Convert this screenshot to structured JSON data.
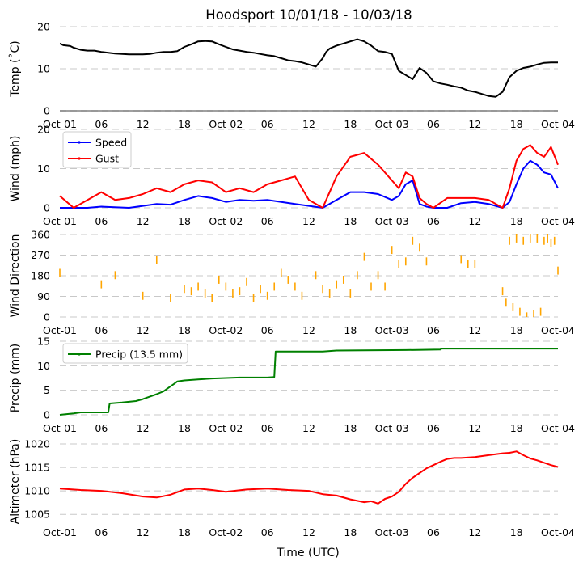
{
  "title": "Hoodsport 10/01/18 - 10/03/18",
  "xlabel": "Time (UTC)",
  "x_ticks": [
    "Oct-01",
    "06",
    "12",
    "18",
    "Oct-02",
    "06",
    "12",
    "18",
    "Oct-03",
    "06",
    "12",
    "18",
    "Oct-04"
  ],
  "colors": {
    "temp": "#000000",
    "speed": "#0000ff",
    "gust": "#ff0000",
    "dir": "#ffa500",
    "precip": "#008000",
    "alt": "#ff0000"
  },
  "chart_data": [
    {
      "type": "line",
      "id": "temp",
      "ylabel": "Temp ($^\\circ$C)",
      "ylabel_display": "Temp (˚C)",
      "ylim": [
        0,
        20
      ],
      "y_ticks": [
        "0",
        "10",
        "20"
      ],
      "x_unit": "hours since Oct-01 00:00 UTC",
      "series": [
        {
          "name": "Temp",
          "x": [
            0,
            0.5,
            1,
            1.5,
            2,
            3,
            4,
            5,
            6,
            7,
            8,
            9,
            10,
            11,
            12,
            13,
            14,
            15,
            16,
            17,
            18,
            19,
            20,
            21,
            22,
            23,
            24,
            25,
            26,
            27,
            28,
            29,
            30,
            31,
            32,
            33,
            34,
            35,
            36,
            37,
            38,
            38.5,
            39,
            40,
            41,
            42,
            43,
            44,
            45,
            46,
            47,
            48,
            49,
            50,
            51,
            52,
            53,
            54,
            55,
            56,
            57,
            58,
            59,
            60,
            61,
            62,
            63,
            64,
            65,
            66,
            67,
            68,
            69,
            70,
            71,
            72
          ],
          "y": [
            16,
            15.6,
            15.5,
            15.4,
            15,
            14.5,
            14.3,
            14.3,
            14,
            13.8,
            13.6,
            13.5,
            13.4,
            13.4,
            13.4,
            13.5,
            13.8,
            14,
            14,
            14.2,
            15.2,
            15.8,
            16.5,
            16.6,
            16.5,
            15.8,
            15.2,
            14.6,
            14.3,
            14,
            13.8,
            13.5,
            13.2,
            13,
            12.5,
            12,
            11.8,
            11.5,
            11,
            10.5,
            12.5,
            14,
            14.8,
            15.5,
            16,
            16.5,
            17,
            16.5,
            15.5,
            14.2,
            14,
            13.5,
            9.5,
            8.5,
            7.5,
            10.2,
            9,
            7,
            6.5,
            6.2,
            5.8,
            5.5,
            4.8,
            4.5,
            4,
            3.5,
            3.3,
            4.5,
            8,
            9.5,
            10.2,
            10.5,
            11,
            11.4,
            11.5,
            11.5
          ]
        }
      ]
    },
    {
      "type": "line",
      "id": "wind",
      "ylabel": "Wind (mph)",
      "ylim": [
        0,
        20
      ],
      "y_ticks": [
        "0",
        "10",
        "20"
      ],
      "legend": [
        "Speed",
        "Gust"
      ],
      "series": [
        {
          "name": "Speed",
          "x": [
            0,
            4,
            6,
            10,
            12,
            14,
            16,
            18,
            20,
            22,
            24,
            26,
            28,
            30,
            32,
            34,
            36,
            38,
            40,
            42,
            44,
            46,
            48,
            49,
            50,
            51,
            52,
            53,
            54,
            56,
            58,
            60,
            62,
            63,
            64,
            65,
            66,
            67,
            68,
            69,
            70,
            71,
            72
          ],
          "y": [
            0,
            0,
            0.3,
            0,
            0.5,
            1,
            0.8,
            2,
            3,
            2.5,
            1.5,
            2,
            1.8,
            2,
            1.5,
            1,
            0.5,
            0,
            2,
            4,
            4,
            3.5,
            2,
            3,
            6,
            7,
            1,
            0.3,
            0,
            0,
            1.2,
            1.5,
            1,
            0.5,
            0,
            1.5,
            6,
            10,
            12,
            11,
            9,
            8.5,
            5
          ]
        },
        {
          "name": "Gust",
          "x": [
            0,
            2,
            6,
            8,
            10,
            12,
            14,
            16,
            18,
            20,
            22,
            24,
            26,
            28,
            30,
            32,
            34,
            36,
            38,
            40,
            42,
            44,
            46,
            48,
            49,
            50,
            51,
            52,
            53,
            54,
            56,
            58,
            60,
            62,
            64,
            65,
            66,
            67,
            68,
            69,
            70,
            71,
            72
          ],
          "y": [
            3,
            0,
            4,
            2,
            2.5,
            3.5,
            5,
            4,
            6,
            7,
            6.5,
            4,
            5,
            4,
            6,
            7,
            8,
            2,
            0,
            8,
            13,
            14,
            11,
            7,
            5,
            9,
            8,
            2.5,
            1,
            0,
            2.5,
            2.5,
            2.5,
            2,
            0,
            5,
            12,
            15,
            16,
            14,
            13,
            15.5,
            11
          ]
        }
      ]
    },
    {
      "type": "scatter",
      "id": "direction",
      "ylabel": "Wind Direction",
      "ylim": [
        0,
        360
      ],
      "y_ticks": [
        "0",
        "90",
        "180",
        "270",
        "360"
      ],
      "series": [
        {
          "name": "Direction",
          "x": [
            0,
            6,
            8,
            12,
            14,
            16,
            18,
            19,
            20,
            21,
            22,
            23,
            24,
            25,
            26,
            27,
            28,
            29,
            30,
            31,
            32,
            33,
            34,
            35,
            37,
            38,
            39,
            40,
            41,
            42,
            43,
            44,
            45,
            46,
            47,
            48,
            49,
            50,
            51,
            52,
            53,
            58,
            59,
            60,
            64,
            64.5,
            65,
            65.5,
            66,
            66.5,
            67,
            67.5,
            68,
            68.5,
            69,
            69.5,
            70,
            70.5,
            71,
            71.5,
            72
          ],
          "y": [
            210,
            160,
            200,
            110,
            265,
            100,
            140,
            130,
            150,
            120,
            100,
            180,
            150,
            120,
            130,
            170,
            100,
            140,
            110,
            150,
            210,
            180,
            150,
            110,
            200,
            140,
            120,
            160,
            180,
            120,
            200,
            280,
            150,
            200,
            150,
            310,
            250,
            260,
            350,
            320,
            260,
            270,
            250,
            250,
            130,
            80,
            350,
            60,
            360,
            40,
            350,
            20,
            360,
            30,
            360,
            40,
            350,
            360,
            340,
            350,
            220
          ]
        }
      ]
    },
    {
      "type": "line",
      "id": "precip",
      "ylabel": "Precip (mm)",
      "ylim": [
        0,
        15
      ],
      "y_ticks": [
        "0",
        "5",
        "10",
        "15"
      ],
      "legend": [
        "Precip (13.5 mm)"
      ],
      "series": [
        {
          "name": "Precip (13.5 mm)",
          "x": [
            0,
            2,
            3,
            7,
            7.2,
            9,
            11,
            12,
            13,
            14,
            15,
            16,
            16.5,
            17,
            18,
            20,
            22,
            24,
            26,
            30,
            31,
            31.2,
            38,
            40,
            50,
            55,
            55.2,
            72
          ],
          "y": [
            0,
            0.3,
            0.5,
            0.5,
            2.3,
            2.5,
            2.8,
            3.2,
            3.7,
            4.2,
            4.8,
            5.8,
            6.3,
            6.8,
            7,
            7.2,
            7.4,
            7.5,
            7.6,
            7.6,
            7.7,
            12.9,
            12.9,
            13.1,
            13.2,
            13.3,
            13.5,
            13.5
          ]
        }
      ]
    },
    {
      "type": "line",
      "id": "altimeter",
      "ylabel": "Altimeter (hPa)",
      "ylim": [
        1004,
        1020
      ],
      "y_ticks": [
        "1005",
        "1010",
        "1015",
        "1020"
      ],
      "series": [
        {
          "name": "Altimeter",
          "x": [
            0,
            3,
            6,
            9,
            12,
            14,
            16,
            18,
            20,
            22,
            24,
            27,
            30,
            33,
            36,
            38,
            40,
            42,
            44,
            45,
            46,
            47,
            48,
            49,
            50,
            51,
            52,
            53,
            54,
            55,
            56,
            57,
            58,
            60,
            62,
            64,
            65,
            66,
            67,
            68,
            69,
            70,
            71,
            72
          ],
          "y": [
            1010.5,
            1010.2,
            1010.0,
            1009.5,
            1008.8,
            1008.6,
            1009.2,
            1010.3,
            1010.5,
            1010.2,
            1009.8,
            1010.3,
            1010.5,
            1010.2,
            1010.0,
            1009.3,
            1009.0,
            1008.2,
            1007.6,
            1007.8,
            1007.3,
            1008.3,
            1008.8,
            1009.8,
            1011.5,
            1012.8,
            1013.8,
            1014.8,
            1015.5,
            1016.2,
            1016.8,
            1017.0,
            1017.0,
            1017.2,
            1017.6,
            1018.0,
            1018.1,
            1018.4,
            1017.6,
            1016.9,
            1016.5,
            1016.0,
            1015.5,
            1015.1
          ]
        }
      ]
    }
  ]
}
